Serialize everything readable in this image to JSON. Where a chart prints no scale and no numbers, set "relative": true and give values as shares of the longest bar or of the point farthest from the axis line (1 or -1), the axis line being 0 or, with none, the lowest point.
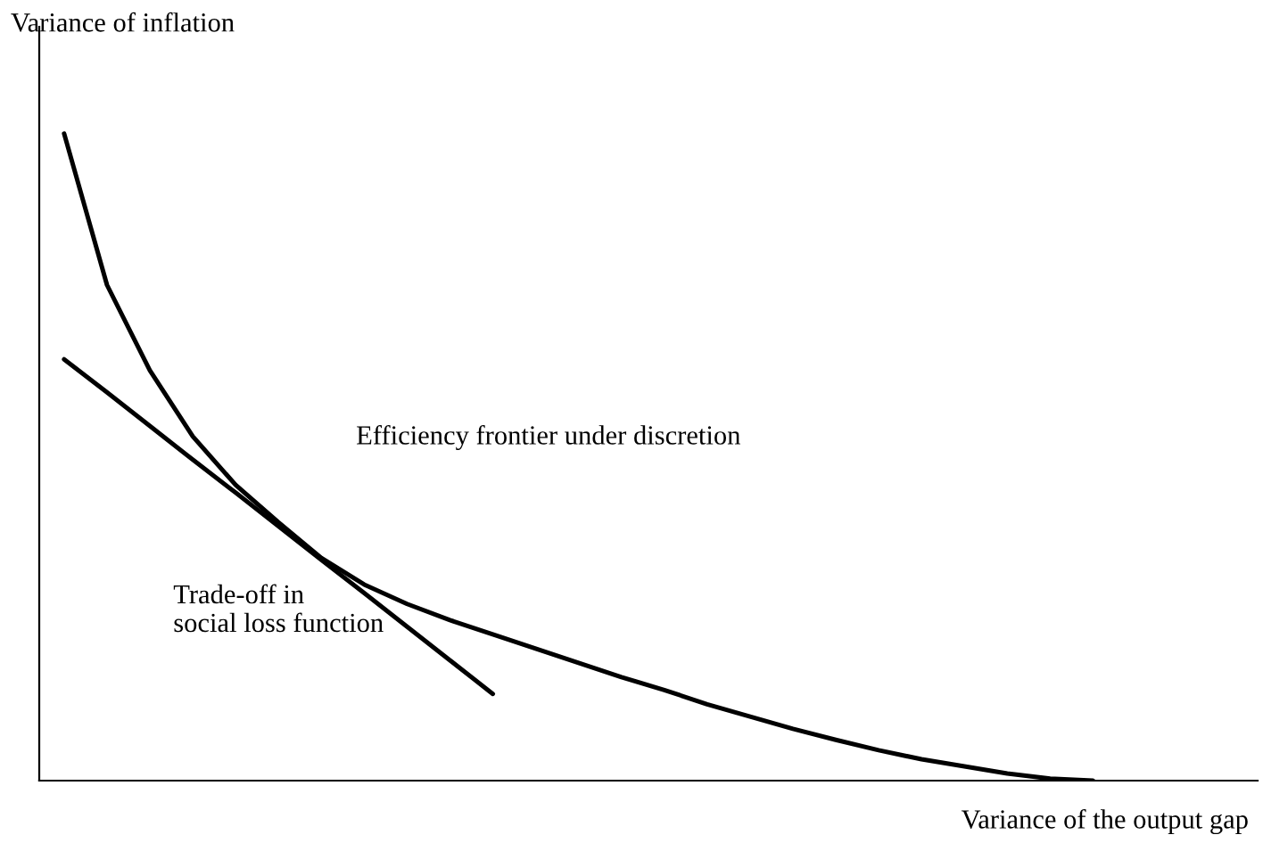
{
  "chart_data": {
    "type": "line",
    "relative": true,
    "xlabel": "Variance of the output gap",
    "ylabel": "Variance of inflation",
    "categories": [
      null,
      null,
      null,
      null,
      null,
      null,
      null,
      null,
      null,
      null,
      null,
      null,
      null,
      null,
      null,
      null,
      null,
      null,
      null,
      null,
      null,
      null,
      null,
      null,
      null
    ],
    "legend": false,
    "marker": "none",
    "line_style": "solid",
    "series": [
      {
        "color": "#000000",
        "values": [
          1.0,
          0.766,
          0.634,
          0.532,
          0.457,
          0.399,
          0.344,
          0.303,
          0.273,
          0.248,
          0.226,
          0.204,
          0.182,
          0.16,
          0.14,
          0.118,
          0.099,
          0.08,
          0.063,
          0.047,
          0.033,
          0.022,
          0.011,
          0.003,
          0.0
        ]
      },
      {
        "color": "#000000",
        "values": [
          0.651,
          0.6,
          0.548,
          0.496,
          0.445,
          0.393,
          0.341,
          0.29,
          0.238,
          0.186,
          0.134,
          null,
          null,
          null,
          null,
          null,
          null,
          null,
          null,
          null,
          null,
          null,
          null,
          null,
          null
        ]
      }
    ],
    "annotations": [
      "Efficiency frontier under discretion",
      "Trade-off in\nsocial loss function"
    ]
  }
}
